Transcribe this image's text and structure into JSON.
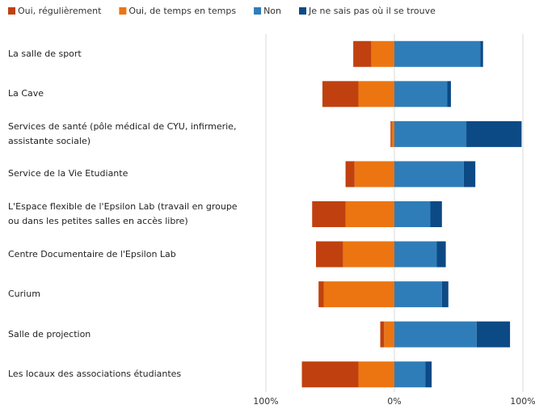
{
  "chart_data": {
    "type": "diverging_bar",
    "categories": [
      "La salle de sport",
      "La Cave",
      "Services de santé (pôle médical de CYU,  infirmerie, assistante sociale)",
      "Service de la Vie Etudiante",
      "L'Espace flexible de l'Epsilon Lab (travail en groupe ou dans les petites salles en accès libre)",
      "Centre Documentaire de l'Epsilon Lab",
      "Curium",
      "Salle de projection",
      "Les locaux des associations étudiantes"
    ],
    "series": [
      {
        "name": "Oui, régulièrement",
        "color": "#c0410f",
        "values": [
          -14,
          -28,
          -1,
          -7,
          -26,
          -21,
          -4,
          -3,
          -44
        ]
      },
      {
        "name": "Oui, de temps en temps",
        "color": "#ec7512",
        "values": [
          -18,
          -28,
          -2,
          -31,
          -38,
          -40,
          -55,
          -8,
          -28
        ]
      },
      {
        "name": "Non",
        "color": "#2f7db8",
        "values": [
          67,
          41,
          56,
          54,
          28,
          33,
          37,
          64,
          24
        ]
      },
      {
        "name": "Je ne sais pas où il se trouve",
        "color": "#0c4a86",
        "values": [
          2,
          3,
          43,
          9,
          9,
          7,
          5,
          26,
          5
        ]
      }
    ],
    "xlim": [
      -100,
      100
    ],
    "xticks": [
      {
        "value": -100,
        "label": "100%"
      },
      {
        "value": 0,
        "label": "0%"
      },
      {
        "value": 100,
        "label": "100%"
      }
    ],
    "grid": true
  }
}
